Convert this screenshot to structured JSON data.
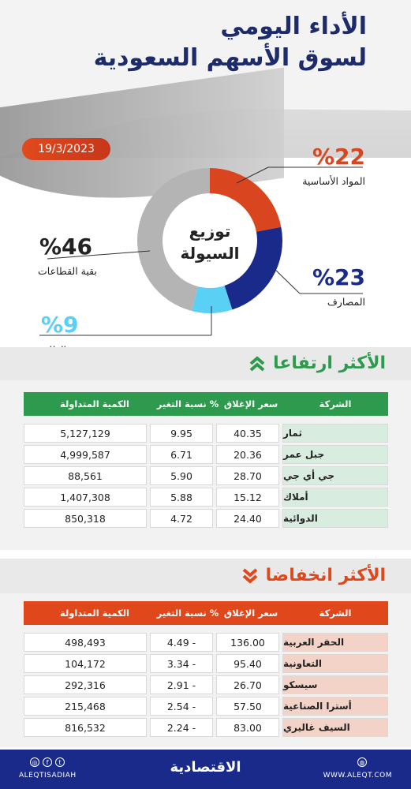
{
  "header": {
    "title_line1": "الأداء اليومي",
    "title_line2": "لسوق الأسهم السعودية",
    "date": "19/3/2023"
  },
  "donut": {
    "center_line1": "توزيع",
    "center_line2": "السيولة",
    "segments": [
      {
        "name": "المواد الأساسية",
        "pct_label": "%22",
        "value": 22,
        "color": "#d9451e"
      },
      {
        "name": "المصارف",
        "pct_label": "%23",
        "value": 23,
        "color": "#1a2a8a"
      },
      {
        "name": "الطاقة",
        "pct_label": "%9",
        "value": 9,
        "color": "#5ad0f5"
      },
      {
        "name": "بقية القطاعات",
        "pct_label": "%46",
        "value": 46,
        "color": "#b4b4b4"
      }
    ]
  },
  "gainers": {
    "title": "الأكثر ارتفاعا",
    "header_color": "#2e9a4e",
    "name_bg": "#d9ece0",
    "columns": [
      "الشركة",
      "سعر الإغلاق",
      "نسبة التغير %",
      "الكمية المتداولة"
    ],
    "rows": [
      {
        "name": "ثمار",
        "close": "40.35",
        "change": "9.95",
        "volume": "5,127,129"
      },
      {
        "name": "جبل عمر",
        "close": "20.36",
        "change": "6.71",
        "volume": "4,999,587"
      },
      {
        "name": "جي أي جي",
        "close": "28.70",
        "change": "5.90",
        "volume": "88,561"
      },
      {
        "name": "أملاك",
        "close": "15.12",
        "change": "5.88",
        "volume": "1,407,308"
      },
      {
        "name": "الدوائية",
        "close": "24.40",
        "change": "4.72",
        "volume": "850,318"
      }
    ]
  },
  "losers": {
    "title": "الأكثر انخفاضا",
    "header_color": "#e0481c",
    "name_bg": "#f3d3c7",
    "columns": [
      "الشركة",
      "سعر الإغلاق",
      "نسبة التغير %",
      "الكمية المتداولة"
    ],
    "rows": [
      {
        "name": "الحفر العربية",
        "close": "136.00",
        "change": "4.49 -",
        "volume": "498,493"
      },
      {
        "name": "التعاونية",
        "close": "95.40",
        "change": "3.34 -",
        "volume": "104,172"
      },
      {
        "name": "سيسكو",
        "close": "26.70",
        "change": "2.91 -",
        "volume": "292,316"
      },
      {
        "name": "أسترا الصناعية",
        "close": "57.50",
        "change": "2.54 -",
        "volume": "215,468"
      },
      {
        "name": "السيف غاليري",
        "close": "83.00",
        "change": "2.24 -",
        "volume": "816,532"
      }
    ]
  },
  "footer": {
    "brand": "الاقتصادية",
    "handle": "ALEQTISADIAH",
    "website": "WWW.ALEQT.COM"
  }
}
